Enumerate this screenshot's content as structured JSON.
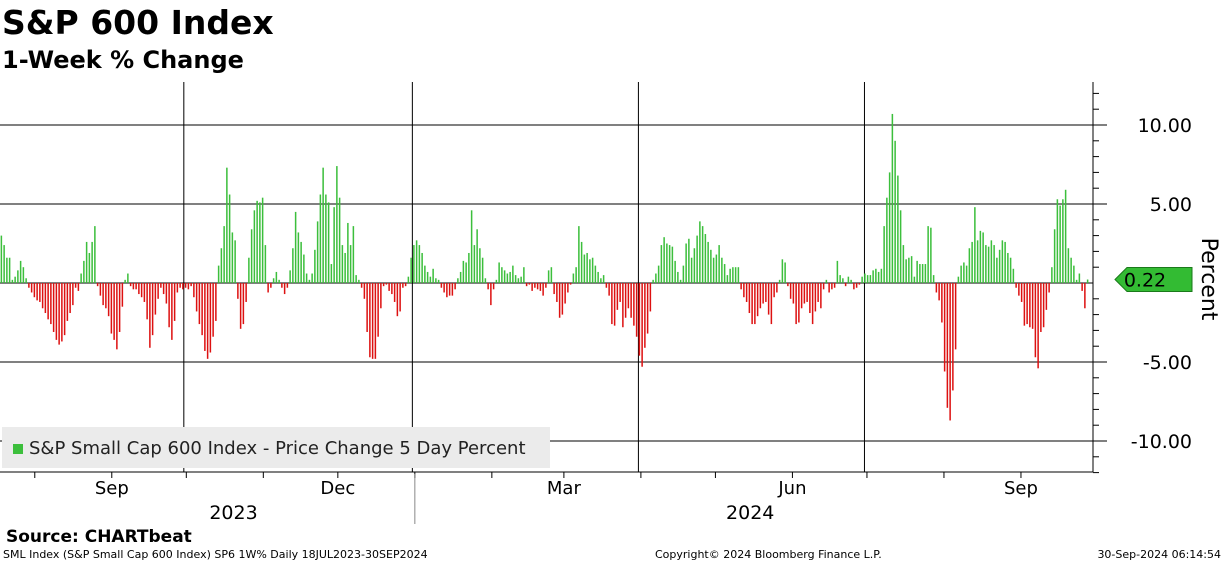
{
  "title": "S&P 600 Index",
  "subtitle": "1-Week % Change",
  "source": "Source: CHARTbeat",
  "footer": {
    "left": "SML Index (S&P Small Cap 600 Index) SP6 1W%  Daily 18JUL2023-30SEP2024",
    "center": "Copyright© 2024 Bloomberg Finance L.P.",
    "right": "30-Sep-2024 06:14:54"
  },
  "colors": {
    "positive": "#3cbf3c",
    "negative": "#dd1111",
    "last_value_tag": "#33bb33",
    "legend_bg": "#ebebeb"
  },
  "chart_data": {
    "type": "bar",
    "ylabel": "Percent",
    "ylim": [
      -12,
      12
    ],
    "yticks": [
      {
        "value": 10,
        "label": "10.00"
      },
      {
        "value": 5,
        "label": "5.00"
      },
      {
        "value": -5,
        "label": "-5.00"
      },
      {
        "value": -10,
        "label": "-10.00"
      }
    ],
    "x_range": [
      "2023-07-18",
      "2024-09-30"
    ],
    "month_labels": [
      {
        "label": "Sep",
        "date": "2023-09-01"
      },
      {
        "label": "Dec",
        "date": "2023-12-01"
      },
      {
        "label": "Mar",
        "date": "2024-03-01"
      },
      {
        "label": "Jun",
        "date": "2024-06-01"
      },
      {
        "label": "Sep",
        "date": "2024-09-01"
      }
    ],
    "year_labels": [
      {
        "label": "2023",
        "date": "2023-10-20"
      },
      {
        "label": "2024",
        "date": "2024-05-15"
      }
    ],
    "year_divider_date": "2024-01-01",
    "legend": "S&P Small Cap 600 Index - Price Change 5 Day Percent",
    "grid": true,
    "last_value": 0.22,
    "last_value_label": "0.22",
    "series": [
      {
        "name": "S&P Small Cap 600 Index - Price Change 5 Day Percent",
        "values": [
          3.0,
          2.4,
          1.6,
          1.6,
          0.2,
          0.4,
          0.8,
          1.4,
          1.0,
          0.3,
          -0.3,
          -0.6,
          -0.9,
          -1.1,
          -1.2,
          -1.6,
          -1.9,
          -2.3,
          -2.6,
          -3.1,
          -3.6,
          -3.9,
          -3.7,
          -3.3,
          -2.4,
          -1.9,
          -1.4,
          -0.3,
          -0.5,
          0.6,
          1.4,
          2.6,
          1.9,
          2.6,
          3.6,
          -0.2,
          -0.8,
          -1.4,
          -1.6,
          -2.1,
          -3.2,
          -3.6,
          -4.2,
          -3.1,
          -1.5,
          0.2,
          0.6,
          -0.2,
          -0.4,
          -0.4,
          -0.7,
          -0.9,
          -1.2,
          -2.3,
          -4.1,
          -3.3,
          -2.0,
          -1.0,
          -0.3,
          -0.7,
          -1.3,
          -2.8,
          -3.6,
          -2.4,
          -0.6,
          -0.3,
          -0.4,
          -0.3,
          -0.4,
          -0.2,
          -0.9,
          -1.8,
          -2.6,
          -3.3,
          -4.3,
          -4.8,
          -4.4,
          -3.4,
          -2.4,
          1.1,
          2.2,
          3.6,
          7.3,
          5.6,
          3.2,
          2.7,
          -1.0,
          -2.9,
          -2.6,
          -1.2,
          1.6,
          3.4,
          4.6,
          5.2,
          5.1,
          5.4,
          2.4,
          -0.6,
          -0.3,
          0.3,
          0.7,
          0.2,
          -0.3,
          -0.7,
          -0.3,
          0.8,
          2.2,
          4.5,
          3.2,
          2.6,
          1.8,
          0.6,
          0.2,
          0.6,
          2.1,
          3.9,
          5.6,
          7.3,
          5.6,
          5.1,
          1.2,
          4.8,
          7.4,
          5.4,
          2.4,
          1.9,
          3.8,
          2.4,
          3.6,
          0.5,
          0.2,
          -0.3,
          -1.0,
          -3.1,
          -4.7,
          -4.8,
          -4.8,
          -3.4,
          -1.6,
          -0.2,
          -0.1,
          -0.5,
          -0.7,
          -1.2,
          -2.1,
          -1.8,
          -0.3,
          -0.2,
          0.4,
          1.6,
          2.4,
          2.7,
          2.4,
          1.9,
          1.1,
          0.7,
          0.4,
          0.9,
          0.3,
          0.2,
          -0.3,
          -0.6,
          -0.9,
          -0.8,
          -0.8,
          -0.4,
          0.3,
          0.7,
          1.4,
          1.3,
          1.9,
          4.6,
          2.4,
          3.4,
          2.2,
          1.6,
          0.3,
          -0.4,
          -1.4,
          -0.4,
          0.2,
          1.3,
          1.0,
          0.8,
          0.6,
          0.7,
          1.1,
          0.5,
          0.3,
          0.4,
          1.0,
          -0.2,
          -0.1,
          -0.5,
          -0.3,
          -0.4,
          -0.5,
          -0.8,
          -0.3,
          0.8,
          1.0,
          -0.7,
          -1.2,
          -2.2,
          -2.0,
          -1.3,
          -0.6,
          -0.1,
          0.6,
          1.0,
          3.6,
          2.6,
          1.8,
          1.9,
          1.5,
          1.6,
          1.1,
          0.7,
          0.3,
          0.5,
          -0.3,
          -0.8,
          -2.6,
          -2.7,
          -1.7,
          -1.2,
          -2.8,
          -2.2,
          -1.6,
          -2.2,
          -2.7,
          -3.4,
          -4.6,
          -5.3,
          -4.1,
          -3.2,
          -1.8,
          0.2,
          0.6,
          1.1,
          2.4,
          2.9,
          2.5,
          2.4,
          2.3,
          1.4,
          0.7,
          0.2,
          1.1,
          2.5,
          2.8,
          1.6,
          2.2,
          3.0,
          3.9,
          3.6,
          3.1,
          2.6,
          2.1,
          1.6,
          1.8,
          2.4,
          1.6,
          1.2,
          0.5,
          0.9,
          1.0,
          1.0,
          1.0,
          -0.4,
          -0.9,
          -1.2,
          -1.9,
          -2.6,
          -2.6,
          -2.1,
          -1.6,
          -1.3,
          -1.2,
          -2.0,
          -2.6,
          -0.9,
          -0.6,
          0.2,
          1.5,
          1.3,
          -0.2,
          -1.0,
          -1.3,
          -2.6,
          -2.5,
          -1.6,
          -1.3,
          -1.2,
          -1.9,
          -2.6,
          -1.8,
          -1.2,
          -1.6,
          -0.4,
          0.2,
          -0.6,
          -0.4,
          -0.3,
          1.4,
          0.5,
          0.3,
          -0.2,
          0.4,
          0.2,
          -0.4,
          -0.3,
          -0.1,
          0.4,
          0.6,
          0.5,
          0.5,
          0.8,
          0.9,
          0.7,
          0.9,
          3.6,
          5.4,
          7.0,
          10.7,
          9.0,
          6.8,
          4.6,
          2.4,
          1.5,
          1.6,
          1.7,
          0.4,
          1.4,
          1.2,
          1.2,
          1.2,
          3.6,
          3.5,
          0.5,
          -0.6,
          -1.1,
          -2.5,
          -5.6,
          -7.9,
          -8.7,
          -6.8,
          -4.2,
          0.4,
          1.1,
          1.3,
          1.1,
          2.2,
          2.6,
          4.8,
          2.7,
          3.3,
          3.2,
          2.4,
          2.3,
          2.7,
          2.4,
          1.6,
          2.1,
          2.7,
          2.6,
          1.9,
          1.6,
          0.9,
          -0.3,
          -0.8,
          -1.2,
          -2.7,
          -2.6,
          -2.8,
          -2.9,
          -4.7,
          -5.4,
          -3.1,
          -2.8,
          -1.7,
          -0.6,
          1.0,
          3.4,
          5.3,
          4.9,
          5.3,
          5.9,
          2.2,
          1.6,
          1.1,
          0.2,
          0.6,
          -0.5,
          -1.6,
          0.22
        ]
      }
    ]
  }
}
